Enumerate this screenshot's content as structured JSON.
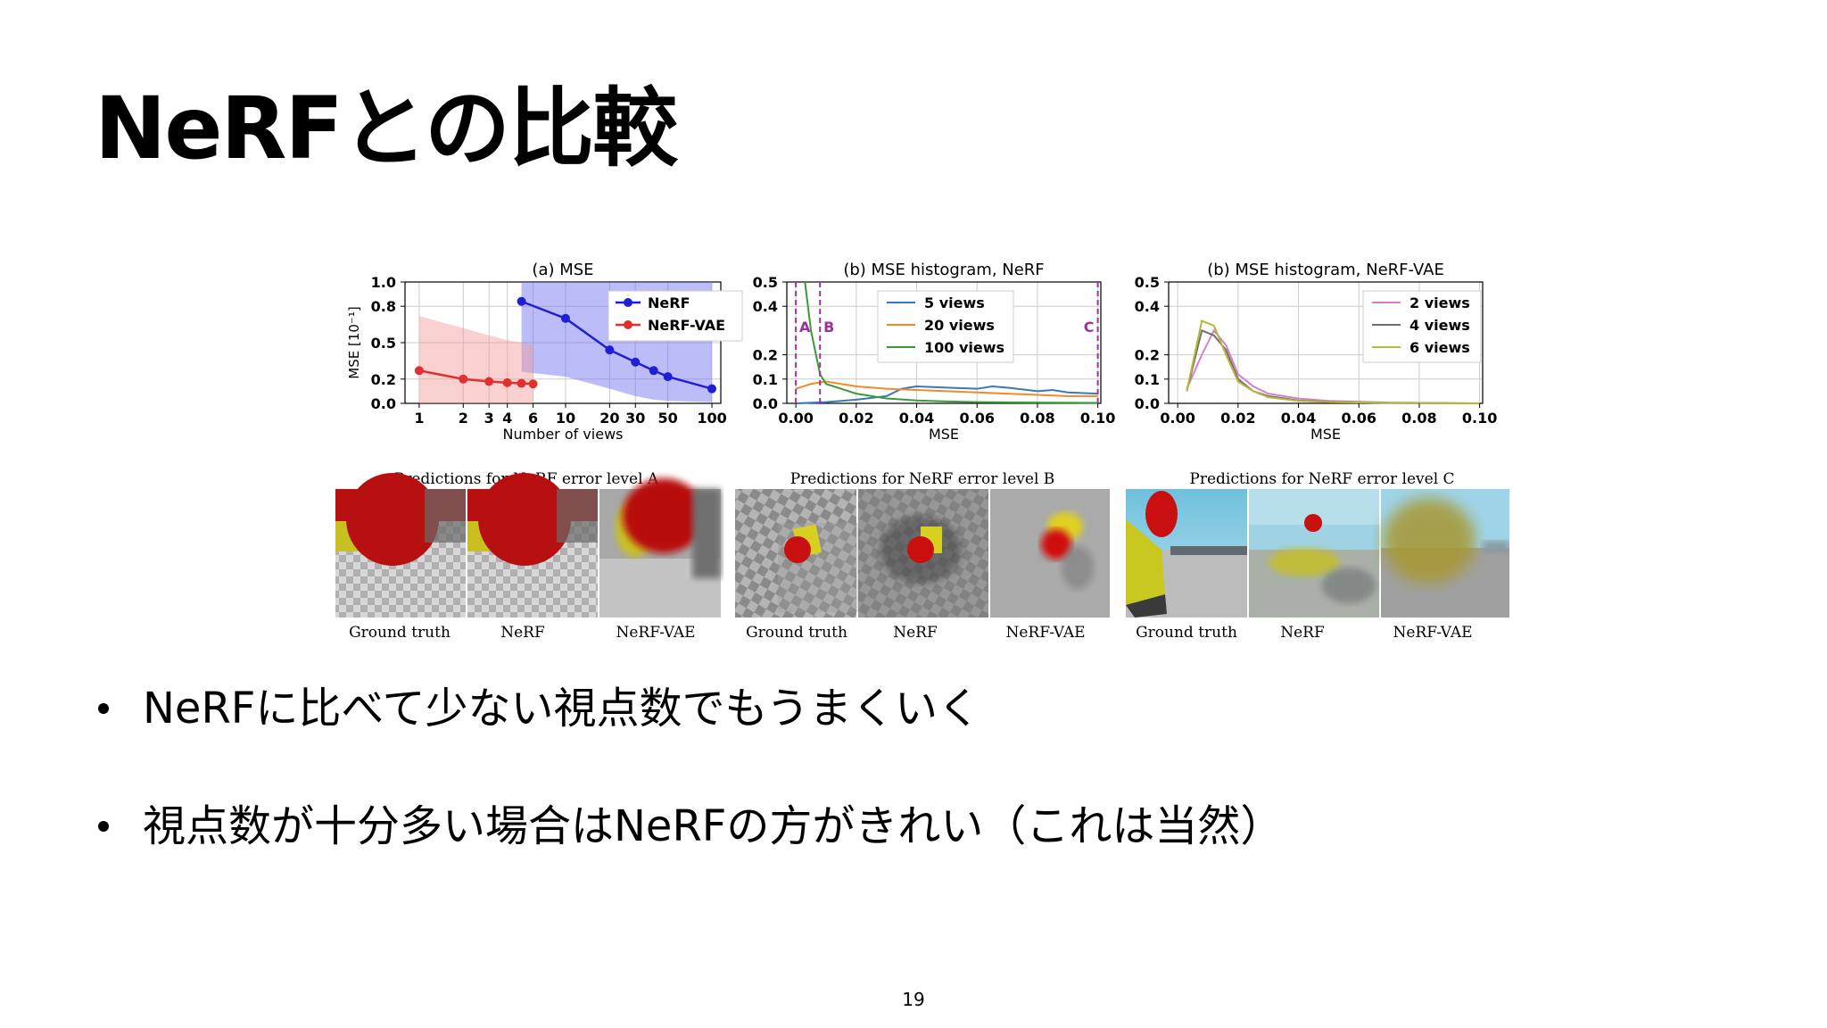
{
  "title": "NeRFとの比較",
  "bullets": [
    "NeRFに比べて少ない視点数でもうまくいく",
    "視点数が十分多い場合はNeRFの方がきれい（これは当然）"
  ],
  "page_number": "19",
  "colors": {
    "nerf": "#1f1fd6",
    "nerfvae": "#e03030",
    "v5": "#3a78b8",
    "v20": "#f08a2a",
    "v100": "#3a9a3a",
    "v2": "#d67fc8",
    "v4": "#707070",
    "v6": "#b8b838",
    "marker": "#a030a0"
  },
  "chart_data": [
    {
      "type": "line",
      "title": "(a) MSE",
      "xlabel": "Number of views",
      "ylabel": "MSE [10⁻¹]",
      "xscale": "log",
      "xticks": [
        "1",
        "2",
        "3",
        "4",
        "6",
        "10",
        "20",
        "30",
        "50",
        "100"
      ],
      "yticks": [
        "0.0",
        "0.2",
        "0.5",
        "0.8",
        "1.0"
      ],
      "ylim": [
        0,
        1.0
      ],
      "grid": true,
      "legend": "top-right",
      "series": [
        {
          "name": "NeRF",
          "x": [
            5,
            10,
            20,
            30,
            40,
            50,
            100
          ],
          "y": [
            0.84,
            0.7,
            0.44,
            0.34,
            0.27,
            0.22,
            0.12
          ],
          "band_low": [
            0.26,
            0.22,
            0.12,
            0.06,
            0.03,
            0.02,
            0.01
          ],
          "band_high": [
            1.0,
            1.0,
            1.0,
            1.0,
            1.0,
            1.0,
            1.0
          ]
        },
        {
          "name": "NeRF-VAE",
          "x": [
            1,
            2,
            3,
            4,
            5,
            6
          ],
          "y": [
            0.27,
            0.2,
            0.18,
            0.17,
            0.165,
            0.16
          ],
          "band_low": [
            0.0,
            0.0,
            0.0,
            0.0,
            0.0,
            0.0
          ],
          "band_high": [
            0.72,
            0.62,
            0.56,
            0.52,
            0.5,
            0.48
          ]
        }
      ]
    },
    {
      "type": "line",
      "title": "(b) MSE histogram, NeRF",
      "xlabel": "MSE",
      "xticks": [
        "0.00",
        "0.02",
        "0.04",
        "0.06",
        "0.08",
        "0.10"
      ],
      "yticks": [
        "0.0",
        "0.1",
        "0.2",
        "0.4",
        "0.5"
      ],
      "ylim": [
        0,
        0.5
      ],
      "grid": true,
      "legend": "top-center",
      "markers": [
        {
          "label": "A",
          "x": 0.0
        },
        {
          "label": "B",
          "x": 0.008
        },
        {
          "label": "C",
          "x": 0.1
        }
      ],
      "series": [
        {
          "name": "5 views",
          "x": [
            0.0,
            0.01,
            0.02,
            0.03,
            0.035,
            0.04,
            0.05,
            0.06,
            0.065,
            0.07,
            0.08,
            0.085,
            0.09,
            0.1
          ],
          "y": [
            0.0,
            0.005,
            0.015,
            0.03,
            0.06,
            0.07,
            0.065,
            0.06,
            0.07,
            0.065,
            0.05,
            0.055,
            0.045,
            0.04
          ]
        },
        {
          "name": "20 views",
          "x": [
            0.0,
            0.005,
            0.01,
            0.02,
            0.03,
            0.04,
            0.05,
            0.06,
            0.07,
            0.08,
            0.09,
            0.1
          ],
          "y": [
            0.06,
            0.08,
            0.09,
            0.07,
            0.06,
            0.055,
            0.05,
            0.045,
            0.04,
            0.035,
            0.03,
            0.03
          ]
        },
        {
          "name": "100 views",
          "x": [
            0.003,
            0.005,
            0.008,
            0.01,
            0.015,
            0.02,
            0.03,
            0.04,
            0.05,
            0.06,
            0.08,
            0.1
          ],
          "y": [
            0.5,
            0.3,
            0.12,
            0.08,
            0.06,
            0.04,
            0.02,
            0.012,
            0.008,
            0.005,
            0.003,
            0.002
          ]
        }
      ]
    },
    {
      "type": "line",
      "title": "(b) MSE histogram, NeRF-VAE",
      "xlabel": "MSE",
      "xticks": [
        "0.00",
        "0.02",
        "0.04",
        "0.06",
        "0.08",
        "0.10"
      ],
      "yticks": [
        "0.0",
        "0.1",
        "0.2",
        "0.4",
        "0.5"
      ],
      "ylim": [
        0,
        0.5
      ],
      "grid": true,
      "legend": "top-right",
      "series": [
        {
          "name": "2 views",
          "x": [
            0.003,
            0.008,
            0.012,
            0.016,
            0.02,
            0.025,
            0.03,
            0.04,
            0.05,
            0.07,
            0.1
          ],
          "y": [
            0.06,
            0.2,
            0.3,
            0.24,
            0.12,
            0.07,
            0.04,
            0.02,
            0.01,
            0.003,
            0.0
          ]
        },
        {
          "name": "4 views",
          "x": [
            0.003,
            0.008,
            0.012,
            0.016,
            0.02,
            0.025,
            0.03,
            0.04,
            0.05,
            0.07,
            0.1
          ],
          "y": [
            0.05,
            0.3,
            0.28,
            0.22,
            0.1,
            0.05,
            0.03,
            0.012,
            0.006,
            0.002,
            0.0
          ]
        },
        {
          "name": "6 views",
          "x": [
            0.003,
            0.008,
            0.012,
            0.016,
            0.02,
            0.025,
            0.03,
            0.04,
            0.05,
            0.07,
            0.1
          ],
          "y": [
            0.05,
            0.34,
            0.32,
            0.2,
            0.09,
            0.05,
            0.025,
            0.01,
            0.005,
            0.002,
            0.0
          ]
        }
      ]
    }
  ],
  "image_panels": [
    {
      "title": "Predictions for NeRF error level A",
      "labels": [
        "Ground truth",
        "NeRF",
        "NeRF-VAE"
      ]
    },
    {
      "title": "Predictions for NeRF error level B",
      "labels": [
        "Ground truth",
        "NeRF",
        "NeRF-VAE"
      ]
    },
    {
      "title": "Predictions for NeRF error level C",
      "labels": [
        "Ground truth",
        "NeRF",
        "NeRF-VAE"
      ]
    }
  ]
}
